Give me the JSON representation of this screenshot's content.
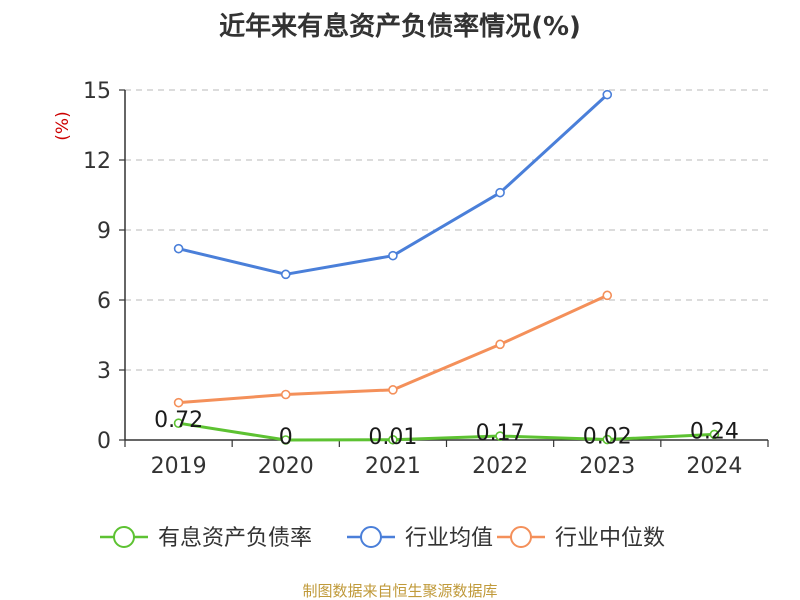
{
  "chart_data": {
    "type": "line",
    "title": "近年来有息资产负债率情况(%)",
    "unit_label": "(%)",
    "categories": [
      "2019",
      "2020",
      "2021",
      "2022",
      "2023",
      "2024"
    ],
    "y_ticks": [
      "0",
      "3",
      "6",
      "9",
      "12",
      "15"
    ],
    "ylim": [
      0,
      15
    ],
    "grid": "horizontal dashed",
    "legend_position": "bottom",
    "series": [
      {
        "name": "有息资产负债率",
        "color": "#5dc232",
        "values": [
          0.72,
          0,
          0.01,
          0.17,
          0.02,
          0.24
        ],
        "labels": [
          "0.72",
          "0",
          "0.01",
          "0.17",
          "0.02",
          "0.24"
        ]
      },
      {
        "name": "行业均值",
        "color": "#4a7fd9",
        "values": [
          8.2,
          7.1,
          7.9,
          10.6,
          14.8,
          null
        ]
      },
      {
        "name": "行业中位数",
        "color": "#f4905a",
        "values": [
          1.6,
          1.95,
          2.15,
          4.1,
          6.2,
          null
        ]
      }
    ]
  },
  "source": "制图数据来自恒生聚源数据库"
}
